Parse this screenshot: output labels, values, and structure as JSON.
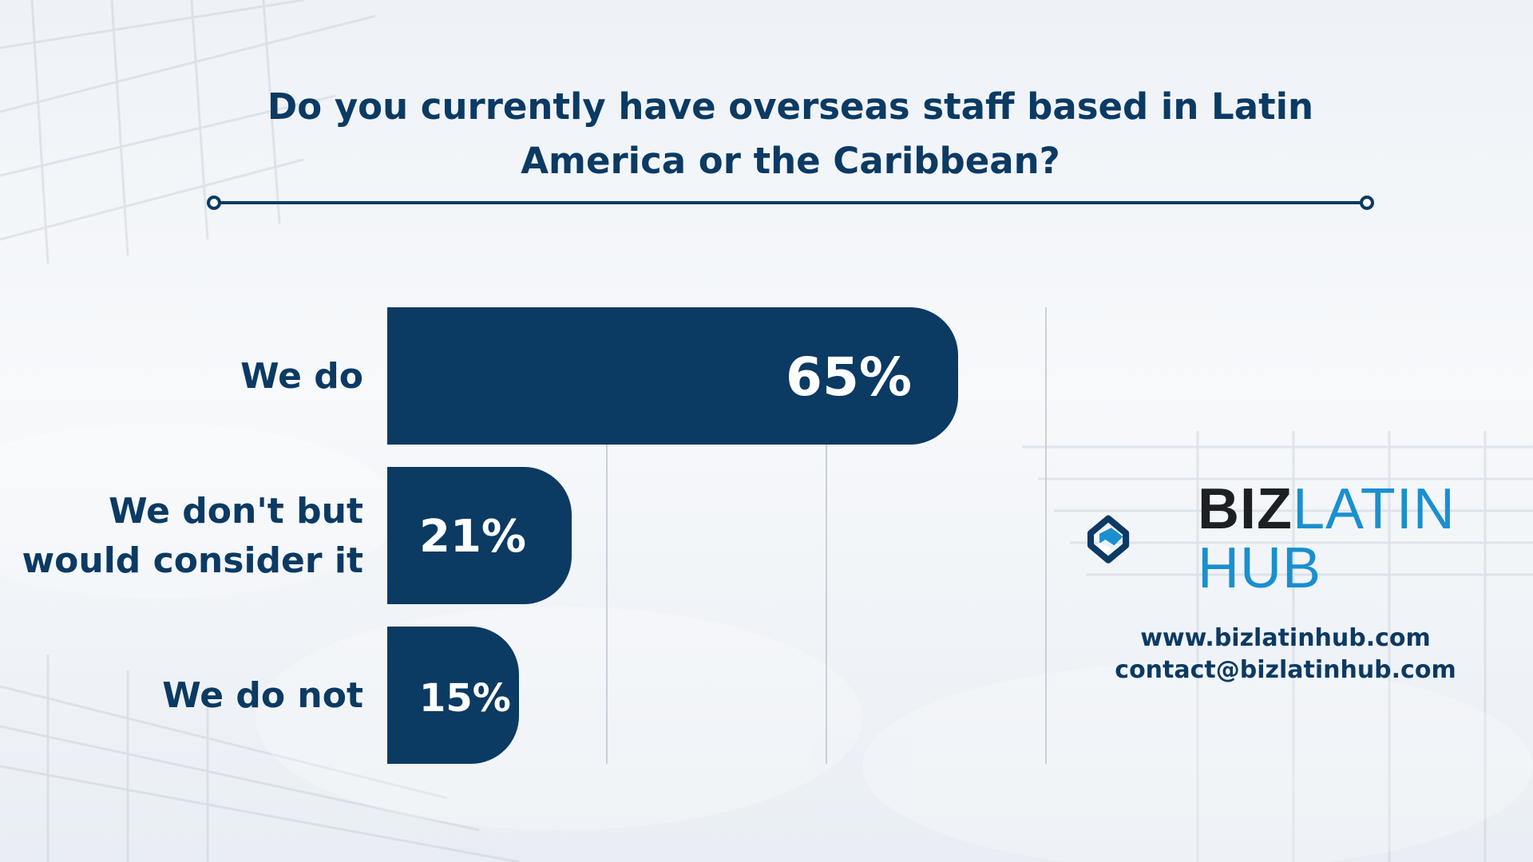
{
  "title": "Do you currently have overseas staff based in Latin America or the Caribbean?",
  "colors": {
    "bar": "#0b3a63",
    "text": "#0b3a63",
    "accent": "#1a8fd0",
    "grid": "#c9d0d8"
  },
  "chart_data": {
    "type": "bar",
    "orientation": "horizontal",
    "categories": [
      "We do",
      "We don't but\nwould consider it",
      "We do not"
    ],
    "values": [
      65,
      21,
      15
    ],
    "value_labels": [
      "65%",
      "21%",
      "15%"
    ],
    "xlim": [
      0,
      75
    ],
    "grid": true,
    "title": "Do you currently have overseas staff based in Latin America or the Caribbean?",
    "xlabel": "",
    "ylabel": ""
  },
  "brand": {
    "biz": "BIZ",
    "latin": "LATIN",
    "hub": "HUB",
    "icon": "bizlatinhub-logo-icon"
  },
  "contact": {
    "website": "www.bizlatinhub.com",
    "email": "contact@bizlatinhub.com"
  }
}
